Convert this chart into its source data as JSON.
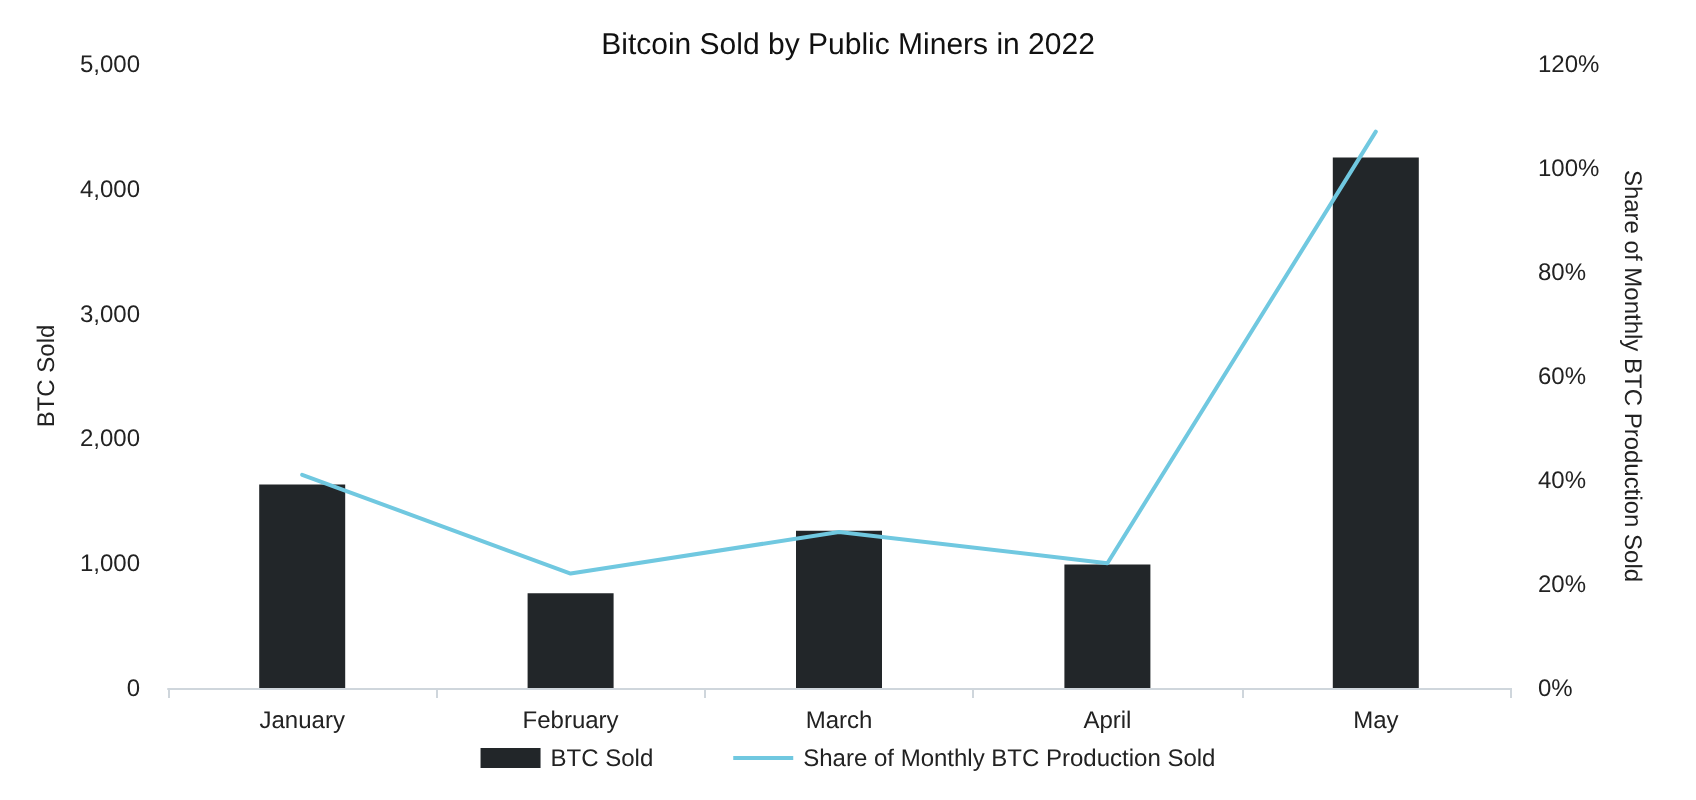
{
  "chart_data": {
    "type": "bar",
    "title": "Bitcoin Sold by Public Miners in 2022",
    "categories": [
      "January",
      "February",
      "March",
      "April",
      "May"
    ],
    "ylabel": "BTC Sold",
    "y2label": "Share of Monthly BTC Production Sold",
    "series": [
      {
        "name": "BTC Sold",
        "color": "#222629",
        "values": [
          1630,
          760,
          1260,
          990,
          4250
        ]
      },
      {
        "name": "Share of Monthly BTC Production Sold",
        "type": "line",
        "axis": "y2",
        "color": "#70c8e0",
        "values": [
          41,
          22,
          30,
          24,
          107
        ]
      }
    ],
    "ylim": [
      0,
      5000
    ],
    "yticks": [
      {
        "value": 0,
        "label": "0"
      },
      {
        "value": 1000,
        "label": "1,000"
      },
      {
        "value": 2000,
        "label": "2,000"
      },
      {
        "value": 3000,
        "label": "3,000"
      },
      {
        "value": 4000,
        "label": "4,000"
      },
      {
        "value": 5000,
        "label": "5,000"
      }
    ],
    "y2lim": [
      0,
      120
    ],
    "y2ticks": [
      {
        "value": 0,
        "label": "0%"
      },
      {
        "value": 20,
        "label": "20%"
      },
      {
        "value": 40,
        "label": "40%"
      },
      {
        "value": 60,
        "label": "60%"
      },
      {
        "value": 80,
        "label": "80%"
      },
      {
        "value": 100,
        "label": "100%"
      },
      {
        "value": 120,
        "label": "120%"
      }
    ],
    "legend": "bottom",
    "marker": "none",
    "line_style": "solid"
  }
}
